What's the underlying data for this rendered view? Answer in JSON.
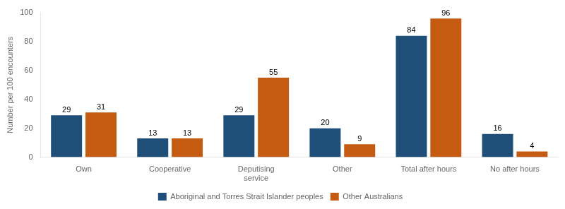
{
  "chart_data": {
    "type": "bar",
    "categories": [
      "Own",
      "Cooperative",
      "Deputising\nservice",
      "Other",
      "Total after hours",
      "No after hours"
    ],
    "series": [
      {
        "name": "Aboriginal and Torres Strait Islander peoples",
        "color": "#1F4E79",
        "values": [
          29,
          13,
          29,
          20,
          84,
          16
        ]
      },
      {
        "name": "Other Australians",
        "color": "#C55A11",
        "values": [
          31,
          13,
          55,
          9,
          96,
          4
        ]
      }
    ],
    "ylabel": "Number per 100 encounters",
    "ylim": [
      0,
      100
    ],
    "yticks": [
      0,
      20,
      40,
      60,
      80,
      100
    ],
    "grid": false,
    "legend": "bottom",
    "data_labels": true
  }
}
